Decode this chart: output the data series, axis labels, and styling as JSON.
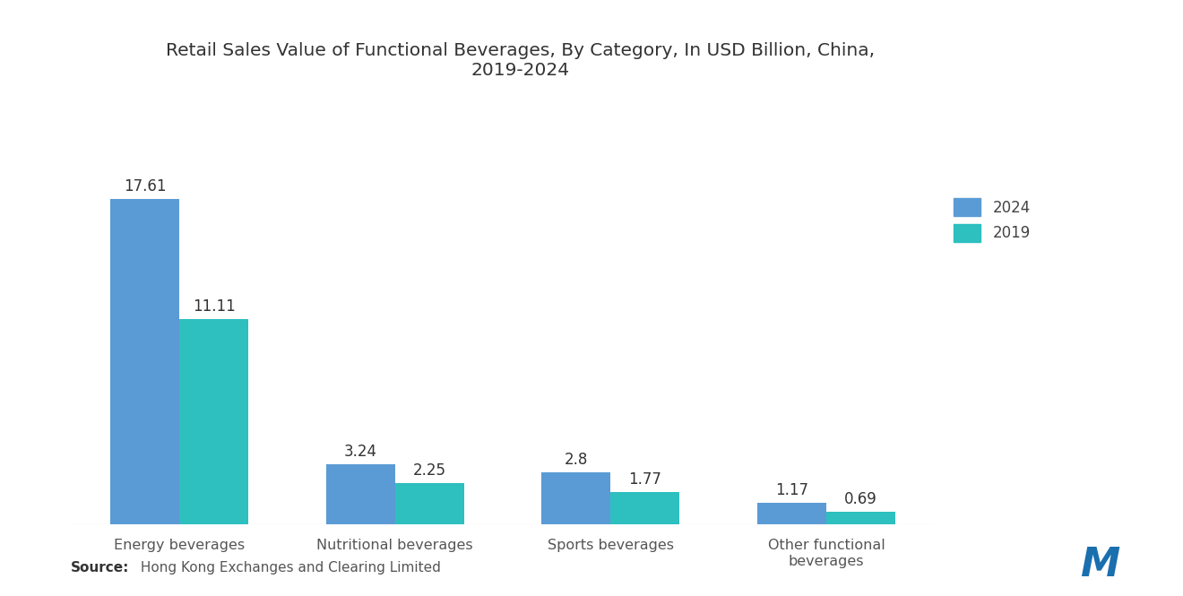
{
  "title": "Retail Sales Value of Functional Beverages, By Category, In USD Billion, China,\n2019-2024",
  "categories": [
    "Energy beverages",
    "Nutritional beverages",
    "Sports beverages",
    "Other functional\nbeverages"
  ],
  "values_2024": [
    17.61,
    3.24,
    2.8,
    1.17
  ],
  "values_2019": [
    11.11,
    2.25,
    1.77,
    0.69
  ],
  "color_2024": "#5B9BD5",
  "color_2019": "#2EBFBF",
  "legend_2024": "2024",
  "legend_2019": "2019",
  "source_label": "Source:",
  "source_text": " Hong Kong Exchanges and Clearing Limited",
  "ylim": [
    0,
    20
  ],
  "bar_width": 0.32,
  "title_fontsize": 14.5,
  "label_fontsize": 12,
  "tick_fontsize": 11.5,
  "source_fontsize": 11,
  "background_color": "#ffffff"
}
